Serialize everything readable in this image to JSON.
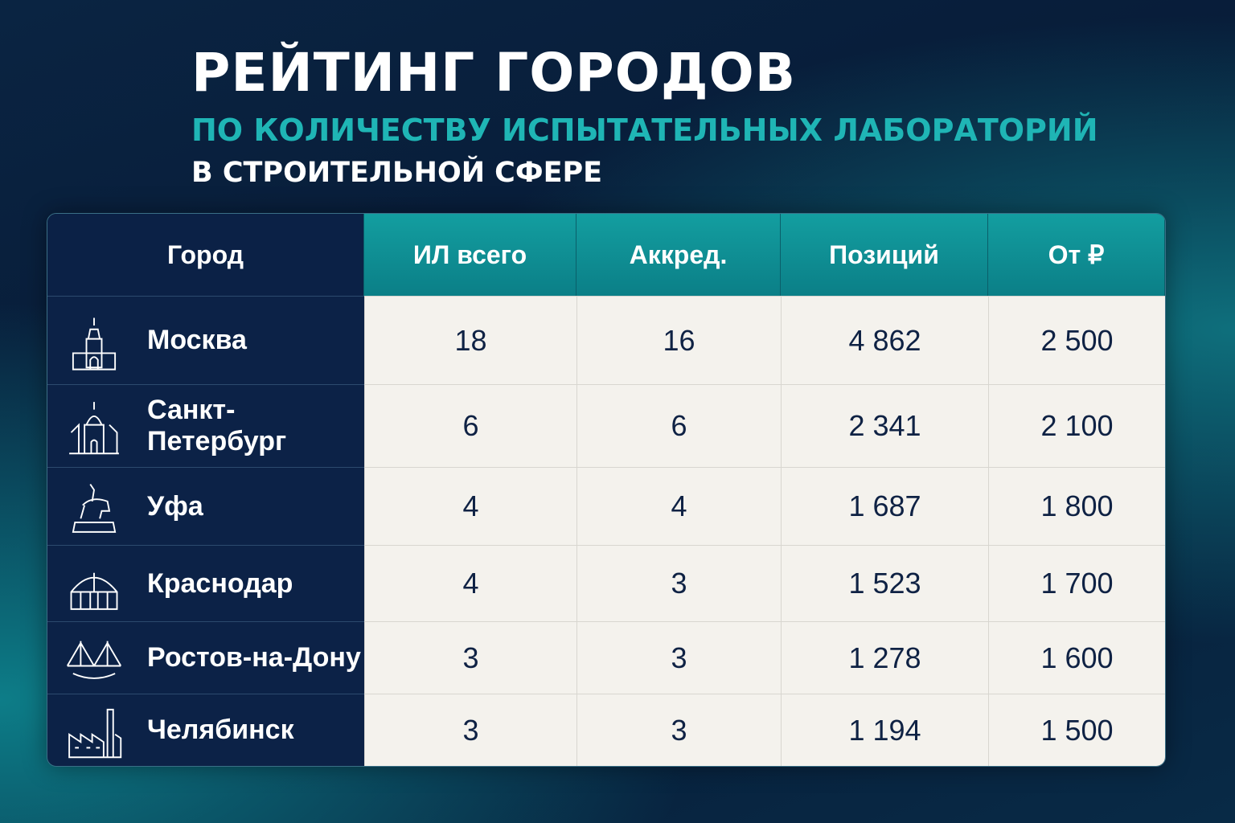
{
  "header": {
    "title": "РЕЙТИНГ ГОРОДОВ",
    "subtitle": "ПО КОЛИЧЕСТВУ ИСПЫТАТЕЛЬНЫХ ЛАБОРАТОРИЙ",
    "subtitle2": "В СТРОИТЕЛЬНОЙ СФЕРЕ"
  },
  "table": {
    "columns": [
      "Город",
      "ИЛ всего",
      "Аккред.",
      "Позиций",
      "От ₽"
    ],
    "rows": [
      [
        "Москва",
        "18",
        "16",
        "4 862",
        "2 500"
      ],
      [
        "Санкт-Петербург",
        "6",
        "6",
        "2 341",
        "2 100"
      ],
      [
        "Уфа",
        "4",
        "4",
        "1 687",
        "1 800"
      ],
      [
        "Краснодар",
        "4",
        "3",
        "1 523",
        "1 700"
      ],
      [
        "Ростов-на-Дону",
        "3",
        "3",
        "1 278",
        "1 600"
      ],
      [
        "Челябинск",
        "3",
        "3",
        "1 194",
        "1 500"
      ]
    ]
  }
}
